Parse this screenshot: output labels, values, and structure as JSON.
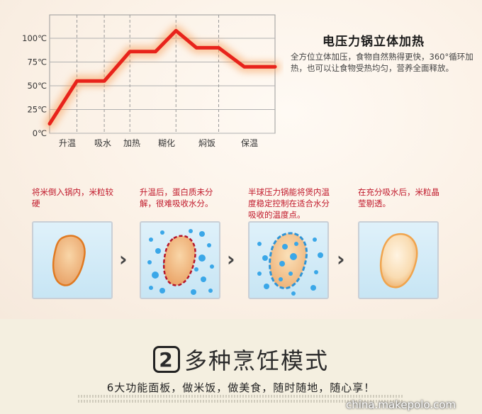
{
  "chart_data": {
    "type": "line",
    "categories": [
      "升温",
      "吸水",
      "加热",
      "糊化",
      "焖饭",
      "保温"
    ],
    "y_ticks": [
      "100℃",
      "75℃",
      "50℃",
      "25℃",
      "0℃"
    ],
    "ylim": [
      0,
      100
    ],
    "points": [
      {
        "x": 0.0,
        "y": 10
      },
      {
        "x": 0.8,
        "y": 55
      },
      {
        "x": 1.6,
        "y": 55
      },
      {
        "x": 2.35,
        "y": 86
      },
      {
        "x": 3.1,
        "y": 86
      },
      {
        "x": 3.7,
        "y": 108
      },
      {
        "x": 4.3,
        "y": 90
      },
      {
        "x": 4.95,
        "y": 90
      },
      {
        "x": 5.7,
        "y": 70
      },
      {
        "x": 6.6,
        "y": 70
      }
    ],
    "x_range": [
      0,
      6.6
    ],
    "line_color": "#e8231b",
    "glow_color": "#f7a05c"
  },
  "info": {
    "heading": "电压力锅立体加热",
    "desc": "全方位立体加压，食物自然熟得更快，360°循环加热，也可以让食物受热均匀，营养全面释放。"
  },
  "steps": [
    {
      "caption": "将米倒入锅内，米粒较硬"
    },
    {
      "caption": "升温后，蛋白质未分解，很难吸收水分。"
    },
    {
      "caption": "半球压力锅能将煲内温度稳定控制在适合水分吸收的温度点。"
    },
    {
      "caption": "在充分吸水后，米粒晶莹剔透。"
    }
  ],
  "mode": {
    "number": "2",
    "title": "多种烹饪模式",
    "subtitle": "6大功能面板，做米饭，做美食，随时随地，随心享！"
  },
  "watermark": "china.makepolo.com"
}
